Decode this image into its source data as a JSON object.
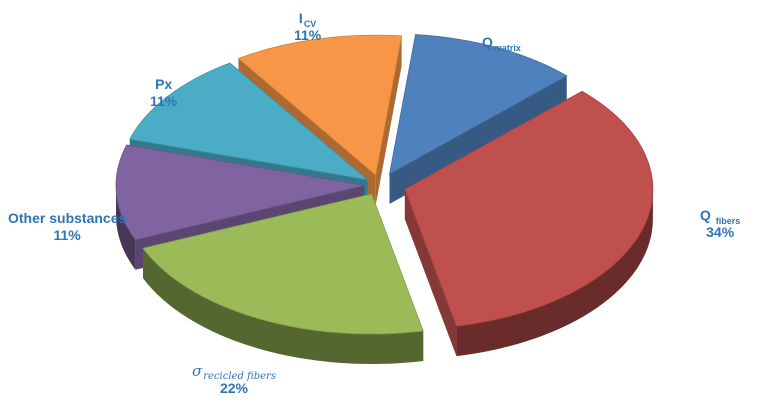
{
  "chart_data": {
    "type": "pie",
    "style": "3d-exploded",
    "slices": [
      {
        "key": "matrix",
        "name_main": "Q",
        "name_sub": "matrix",
        "value": 11,
        "label": "",
        "color": "#4f81bd"
      },
      {
        "key": "fibers",
        "name_main": "Q",
        "name_sub": "fibers",
        "value": 34,
        "label": "34%",
        "color": "#c0504d"
      },
      {
        "key": "recycled",
        "name_main": "σ",
        "name_sub": "recicled fibers",
        "value": 22,
        "label": "22%",
        "color": "#9bbb59"
      },
      {
        "key": "other",
        "name_main": "Other substances",
        "name_sub": "",
        "value": 11,
        "label": "11%",
        "color": "#8064a2"
      },
      {
        "key": "px",
        "name_main": "Px",
        "name_sub": "",
        "value": 11,
        "label": "11%",
        "color": "#4bacc6"
      },
      {
        "key": "icv",
        "name_main": "I",
        "name_sub": "CV",
        "value": 11,
        "label": "11%",
        "color": "#f79646"
      }
    ],
    "legend": "none",
    "label_color": "#2e75b6"
  }
}
